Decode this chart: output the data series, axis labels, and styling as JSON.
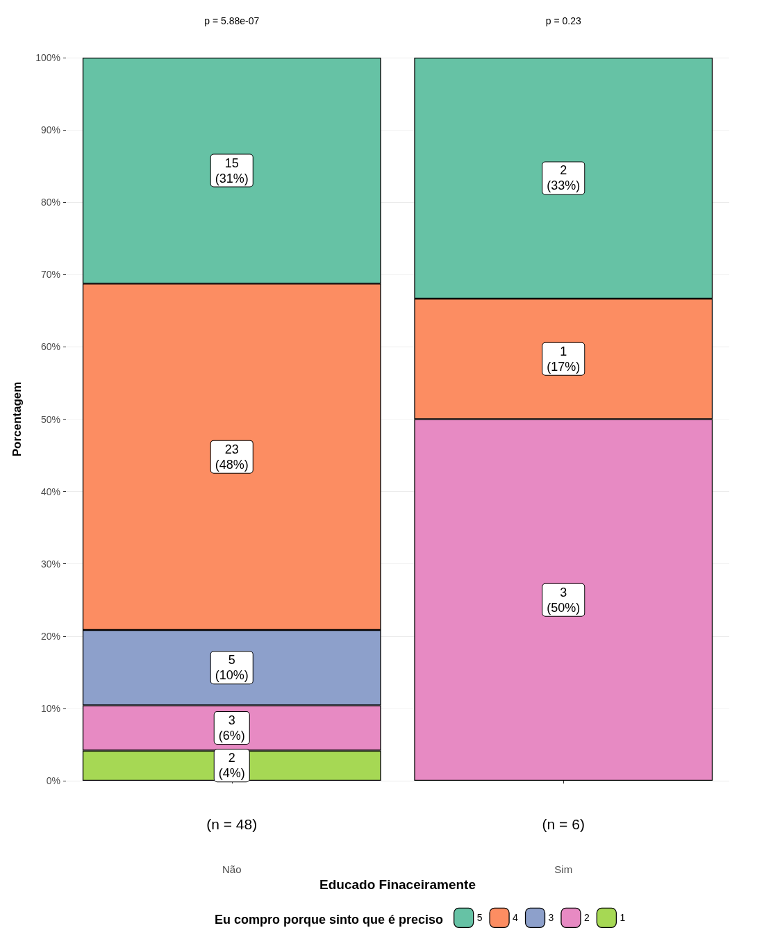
{
  "chart_data": {
    "type": "bar",
    "stacked": true,
    "categories": [
      "Não",
      "Sim"
    ],
    "xlabel": "Educado Finaceiramente",
    "ylabel": "Porcentagem",
    "legend_title": "Eu compro porque sinto que é preciso",
    "legend": "bottom",
    "grid": "y",
    "ylim": [
      0,
      100
    ],
    "yticks": [
      {
        "value": 0,
        "label": "0%"
      },
      {
        "value": 10,
        "label": "10%"
      },
      {
        "value": 20,
        "label": "20%"
      },
      {
        "value": 30,
        "label": "30%"
      },
      {
        "value": 40,
        "label": "40%"
      },
      {
        "value": 50,
        "label": "50%"
      },
      {
        "value": 60,
        "label": "60%"
      },
      {
        "value": 70,
        "label": "70%"
      },
      {
        "value": 80,
        "label": "80%"
      },
      {
        "value": 90,
        "label": "90%"
      },
      {
        "value": 100,
        "label": "100%"
      }
    ],
    "series": [
      {
        "name": "1",
        "color": "#a6d854",
        "values": [
          4.17,
          null
        ],
        "value_labels": [
          "2\n(4%)",
          null
        ]
      },
      {
        "name": "2",
        "color": "#e78ac3",
        "values": [
          6.25,
          50
        ],
        "value_labels": [
          "3\n(6%)",
          "3\n(50%)"
        ]
      },
      {
        "name": "3",
        "color": "#8da0cb",
        "values": [
          10.42,
          null
        ],
        "value_labels": [
          "5\n(10%)",
          null
        ]
      },
      {
        "name": "4",
        "color": "#fc8d62",
        "values": [
          47.92,
          16.67
        ],
        "value_labels": [
          "23\n(48%)",
          "1\n(17%)"
        ]
      },
      {
        "name": "5",
        "color": "#66c2a5",
        "values": [
          31.25,
          33.33
        ],
        "value_labels": [
          "15\n(31%)",
          "2\n(33%)"
        ]
      }
    ],
    "annotations": [
      "p = 5.88e-07",
      "p = 0.23",
      "(n = 48)",
      "(n = 6)"
    ]
  }
}
